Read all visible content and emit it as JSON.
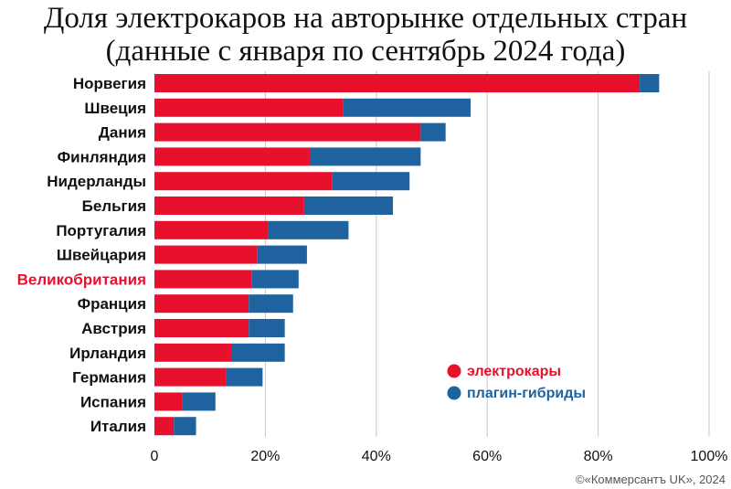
{
  "title_line1": "Доля электрокаров на авторынке отдельных стран",
  "title_line2": "(данные с января по сентябрь 2024 года)",
  "credit": "©«Коммерсантъ UK», 2024",
  "colors": {
    "electric": "#e8112d",
    "hybrid": "#1f62a0",
    "highlight_label": "#e8112d",
    "label": "#111111",
    "grid": "#c8c8c8"
  },
  "chart_data": {
    "type": "bar",
    "orientation": "horizontal",
    "stacked": true,
    "categories": [
      "Норвегия",
      "Швеция",
      "Дания",
      "Финляндия",
      "Нидерланды",
      "Бельгия",
      "Португалия",
      "Швейцария",
      "Великобритания",
      "Франция",
      "Австрия",
      "Ирландия",
      "Германия",
      "Испания",
      "Италия"
    ],
    "highlighted_category": "Великобритания",
    "series": [
      {
        "name": "электрокары",
        "values": [
          87.5,
          34,
          48,
          28,
          32,
          27,
          20.5,
          18.5,
          17.5,
          17,
          17,
          14,
          13,
          5,
          3.5
        ]
      },
      {
        "name": "плагин-гибриды",
        "values": [
          3.5,
          23,
          4.5,
          20,
          14,
          16,
          14.5,
          9,
          8.5,
          8,
          6.5,
          9.5,
          6.5,
          6,
          4
        ]
      }
    ],
    "x_ticks": [
      "0",
      "20%",
      "40%",
      "60%",
      "80%",
      "100%"
    ],
    "xlim": [
      0,
      100
    ],
    "grid": true,
    "legend_position": "inside-bottom-right"
  }
}
